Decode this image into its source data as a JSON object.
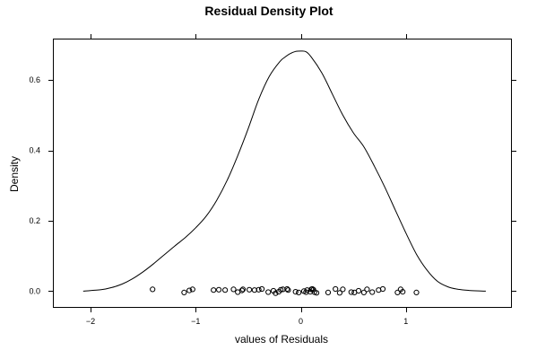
{
  "chart_data": {
    "type": "density",
    "title": "Residual Density Plot",
    "xlabel": "values of Residuals",
    "ylabel": "Density",
    "xlim": [
      -2.35,
      2.0
    ],
    "ylim": [
      -0.045,
      0.715
    ],
    "x_ticks": [
      -2,
      -1,
      0,
      1
    ],
    "x_tick_labels": [
      "−2",
      "−1",
      "0",
      "1"
    ],
    "y_ticks": [
      0.0,
      0.2,
      0.4,
      0.6
    ],
    "y_tick_labels": [
      "0.0",
      "0.2",
      "0.4",
      "0.6"
    ],
    "grid": false,
    "density_curve": {
      "x": [
        -2.07,
        -1.9,
        -1.8,
        -1.7,
        -1.6,
        -1.5,
        -1.4,
        -1.3,
        -1.2,
        -1.1,
        -1.0,
        -0.9,
        -0.8,
        -0.7,
        -0.6,
        -0.5,
        -0.4,
        -0.3,
        -0.2,
        -0.15,
        -0.1,
        -0.05,
        0.0,
        0.05,
        0.1,
        0.2,
        0.3,
        0.4,
        0.5,
        0.6,
        0.7,
        0.8,
        0.9,
        1.0,
        1.1,
        1.2,
        1.3,
        1.4,
        1.5,
        1.6,
        1.76
      ],
      "y": [
        0.0,
        0.004,
        0.01,
        0.02,
        0.035,
        0.055,
        0.078,
        0.103,
        0.128,
        0.152,
        0.18,
        0.213,
        0.258,
        0.315,
        0.385,
        0.462,
        0.545,
        0.61,
        0.652,
        0.665,
        0.675,
        0.681,
        0.682,
        0.68,
        0.665,
        0.62,
        0.56,
        0.5,
        0.45,
        0.41,
        0.355,
        0.295,
        0.23,
        0.165,
        0.105,
        0.06,
        0.028,
        0.012,
        0.005,
        0.002,
        0.0
      ]
    },
    "rug_points": [
      {
        "x": -1.41,
        "y": 0.005
      },
      {
        "x": -1.11,
        "y": -0.004
      },
      {
        "x": -1.06,
        "y": 0.002
      },
      {
        "x": -1.03,
        "y": 0.005
      },
      {
        "x": -0.83,
        "y": 0.003
      },
      {
        "x": -0.78,
        "y": 0.004
      },
      {
        "x": -0.72,
        "y": 0.003
      },
      {
        "x": -0.64,
        "y": 0.005
      },
      {
        "x": -0.6,
        "y": -0.003
      },
      {
        "x": -0.56,
        "y": 0.002
      },
      {
        "x": -0.55,
        "y": 0.005
      },
      {
        "x": -0.49,
        "y": 0.004
      },
      {
        "x": -0.44,
        "y": 0.003
      },
      {
        "x": -0.4,
        "y": 0.004
      },
      {
        "x": -0.37,
        "y": 0.006
      },
      {
        "x": -0.31,
        "y": -0.003
      },
      {
        "x": -0.26,
        "y": 0.001
      },
      {
        "x": -0.24,
        "y": -0.006
      },
      {
        "x": -0.21,
        "y": -0.002
      },
      {
        "x": -0.19,
        "y": 0.004
      },
      {
        "x": -0.17,
        "y": 0.005
      },
      {
        "x": -0.13,
        "y": 0.006
      },
      {
        "x": -0.12,
        "y": 0.003
      },
      {
        "x": -0.05,
        "y": -0.002
      },
      {
        "x": -0.02,
        "y": -0.004
      },
      {
        "x": 0.03,
        "y": 0.0
      },
      {
        "x": 0.05,
        "y": -0.003
      },
      {
        "x": 0.06,
        "y": 0.003
      },
      {
        "x": 0.09,
        "y": -0.002
      },
      {
        "x": 0.1,
        "y": 0.005
      },
      {
        "x": 0.11,
        "y": 0.006
      },
      {
        "x": 0.12,
        "y": 0.004
      },
      {
        "x": 0.13,
        "y": -0.003
      },
      {
        "x": 0.15,
        "y": -0.005
      },
      {
        "x": 0.26,
        "y": -0.004
      },
      {
        "x": 0.33,
        "y": 0.006
      },
      {
        "x": 0.37,
        "y": -0.005
      },
      {
        "x": 0.4,
        "y": 0.005
      },
      {
        "x": 0.48,
        "y": -0.003
      },
      {
        "x": 0.51,
        "y": -0.004
      },
      {
        "x": 0.55,
        "y": 0.001
      },
      {
        "x": 0.6,
        "y": -0.004
      },
      {
        "x": 0.63,
        "y": 0.005
      },
      {
        "x": 0.68,
        "y": -0.003
      },
      {
        "x": 0.74,
        "y": 0.003
      },
      {
        "x": 0.78,
        "y": 0.006
      },
      {
        "x": 0.92,
        "y": -0.004
      },
      {
        "x": 0.95,
        "y": 0.005
      },
      {
        "x": 0.97,
        "y": -0.002
      },
      {
        "x": 1.1,
        "y": -0.004
      }
    ]
  }
}
